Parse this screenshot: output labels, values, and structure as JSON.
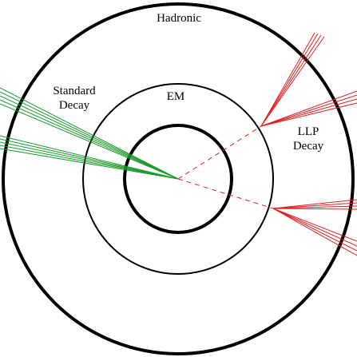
{
  "labels": {
    "hadronic": "Hadronic",
    "em": "EM",
    "standard_decay": [
      "Standard",
      "Decay"
    ],
    "llp_decay": [
      "LLP",
      "Decay"
    ]
  },
  "colors": {
    "rings": "#000000",
    "standard_tracks": "#1a9a2a",
    "llp_tracks": "#dd2222",
    "background": "#ffffff"
  },
  "components": {
    "rings": [
      "inner-tracker-ring",
      "em-calorimeter-ring",
      "hadronic-calorimeter-ring"
    ],
    "standard_jets": 2,
    "llp_jets": 4,
    "llp_paths": 2
  }
}
